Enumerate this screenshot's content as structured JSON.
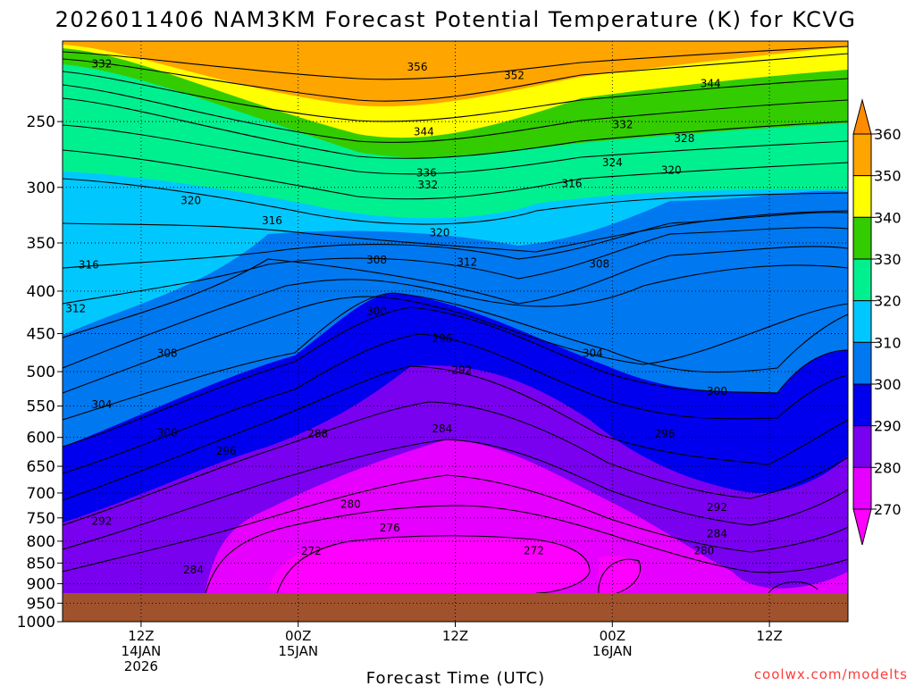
{
  "chart_data": {
    "type": "heatmap",
    "title": "2026011406 NAM3KM Forecast Potential Temperature (K) for KCVG",
    "xlabel": "Forecast Time (UTC)",
    "ylabel": "",
    "credit": "coolwx.com/modelts",
    "y_axis": {
      "unit": "hPa",
      "scale": "log-pressure",
      "range": [
        1000,
        200
      ],
      "ticks": [
        250,
        300,
        350,
        400,
        450,
        500,
        550,
        600,
        650,
        700,
        750,
        800,
        850,
        900,
        950,
        1000
      ],
      "tick_labels": [
        "250",
        "300",
        "350",
        "400",
        "450",
        "500",
        "550",
        "600",
        "650",
        "700",
        "750",
        "800",
        "850",
        "900",
        "950",
        "1000"
      ],
      "grid": "dotted"
    },
    "x_axis": {
      "range_hours": [
        0,
        60
      ],
      "ticks": [
        {
          "hour": 6,
          "lines": [
            "12Z",
            "14JAN",
            "2026"
          ]
        },
        {
          "hour": 18,
          "lines": [
            "00Z",
            "15JAN"
          ]
        },
        {
          "hour": 30,
          "lines": [
            "12Z"
          ]
        },
        {
          "hour": 42,
          "lines": [
            "00Z",
            "16JAN"
          ]
        },
        {
          "hour": 54,
          "lines": [
            "12Z"
          ]
        }
      ],
      "grid": "dotted"
    },
    "colorbar": {
      "unit": "K",
      "labels": [
        "360",
        "350",
        "340",
        "330",
        "320",
        "310",
        "300",
        "290",
        "280",
        "270"
      ],
      "bins": [
        {
          "min": 350,
          "max": 360,
          "color": "#ffa500"
        },
        {
          "min": 340,
          "max": 350,
          "color": "#ffff00"
        },
        {
          "min": 330,
          "max": 340,
          "color": "#33cc00"
        },
        {
          "min": 320,
          "max": 330,
          "color": "#00f090"
        },
        {
          "min": 310,
          "max": 320,
          "color": "#00c8ff"
        },
        {
          "min": 300,
          "max": 310,
          "color": "#0078f0"
        },
        {
          "min": 290,
          "max": 300,
          "color": "#0000ee"
        },
        {
          "min": 280,
          "max": 290,
          "color": "#7a00f0"
        },
        {
          "min": 270,
          "max": 280,
          "color": "#e600ff"
        }
      ],
      "extend": "both",
      "upper_triangle": "#ff8c00",
      "lower_triangle": "#ff00ff"
    },
    "ground_color": "#a0522d",
    "contour_interval_K": 2,
    "contour_levels_drawn": [
      272,
      276,
      280,
      284,
      288,
      292,
      296,
      300,
      304,
      308,
      312,
      316,
      320,
      324,
      328,
      332,
      336,
      344,
      352,
      356
    ],
    "contour_value_labels": [
      {
        "text": "356",
        "hour": 27.1,
        "hpa": 215
      },
      {
        "text": "352",
        "hour": 34.5,
        "hpa": 220
      },
      {
        "text": "344",
        "hour": 49.5,
        "hpa": 225
      },
      {
        "text": "332",
        "hour": 3.0,
        "hpa": 213
      },
      {
        "text": "344",
        "hour": 27.6,
        "hpa": 257
      },
      {
        "text": "332",
        "hour": 42.8,
        "hpa": 252
      },
      {
        "text": "328",
        "hour": 47.5,
        "hpa": 262
      },
      {
        "text": "324",
        "hour": 42.0,
        "hpa": 280
      },
      {
        "text": "320",
        "hour": 46.5,
        "hpa": 286
      },
      {
        "text": "336",
        "hour": 27.8,
        "hpa": 288
      },
      {
        "text": "332",
        "hour": 27.9,
        "hpa": 298
      },
      {
        "text": "316",
        "hour": 38.9,
        "hpa": 297
      },
      {
        "text": "320",
        "hour": 9.8,
        "hpa": 311
      },
      {
        "text": "316",
        "hour": 16.0,
        "hpa": 329
      },
      {
        "text": "320",
        "hour": 28.8,
        "hpa": 340
      },
      {
        "text": "316",
        "hour": 2.0,
        "hpa": 372
      },
      {
        "text": "308",
        "hour": 24.0,
        "hpa": 367
      },
      {
        "text": "312",
        "hour": 30.9,
        "hpa": 369
      },
      {
        "text": "308",
        "hour": 41.0,
        "hpa": 371
      },
      {
        "text": "312",
        "hour": 1.0,
        "hpa": 420
      },
      {
        "text": "300",
        "hour": 24.0,
        "hpa": 423
      },
      {
        "text": "296",
        "hour": 29.0,
        "hpa": 456
      },
      {
        "text": "308",
        "hour": 8.0,
        "hpa": 475
      },
      {
        "text": "304",
        "hour": 40.5,
        "hpa": 475
      },
      {
        "text": "292",
        "hour": 30.5,
        "hpa": 498
      },
      {
        "text": "300",
        "hour": 50.0,
        "hpa": 528
      },
      {
        "text": "304",
        "hour": 3.0,
        "hpa": 548
      },
      {
        "text": "284",
        "hour": 29.0,
        "hpa": 586
      },
      {
        "text": "288",
        "hour": 19.5,
        "hpa": 594
      },
      {
        "text": "300",
        "hour": 8.0,
        "hpa": 592
      },
      {
        "text": "296",
        "hour": 46.0,
        "hpa": 594
      },
      {
        "text": "296",
        "hour": 12.5,
        "hpa": 623
      },
      {
        "text": "280",
        "hour": 22.0,
        "hpa": 722
      },
      {
        "text": "292",
        "hour": 50.0,
        "hpa": 728
      },
      {
        "text": "292",
        "hour": 3.0,
        "hpa": 757
      },
      {
        "text": "276",
        "hour": 25.0,
        "hpa": 771
      },
      {
        "text": "284",
        "hour": 50.0,
        "hpa": 784
      },
      {
        "text": "272",
        "hour": 19.0,
        "hpa": 822
      },
      {
        "text": "272",
        "hour": 36.0,
        "hpa": 821
      },
      {
        "text": "280",
        "hour": 49.0,
        "hpa": 821
      },
      {
        "text": "284",
        "hour": 10.0,
        "hpa": 866
      }
    ]
  }
}
